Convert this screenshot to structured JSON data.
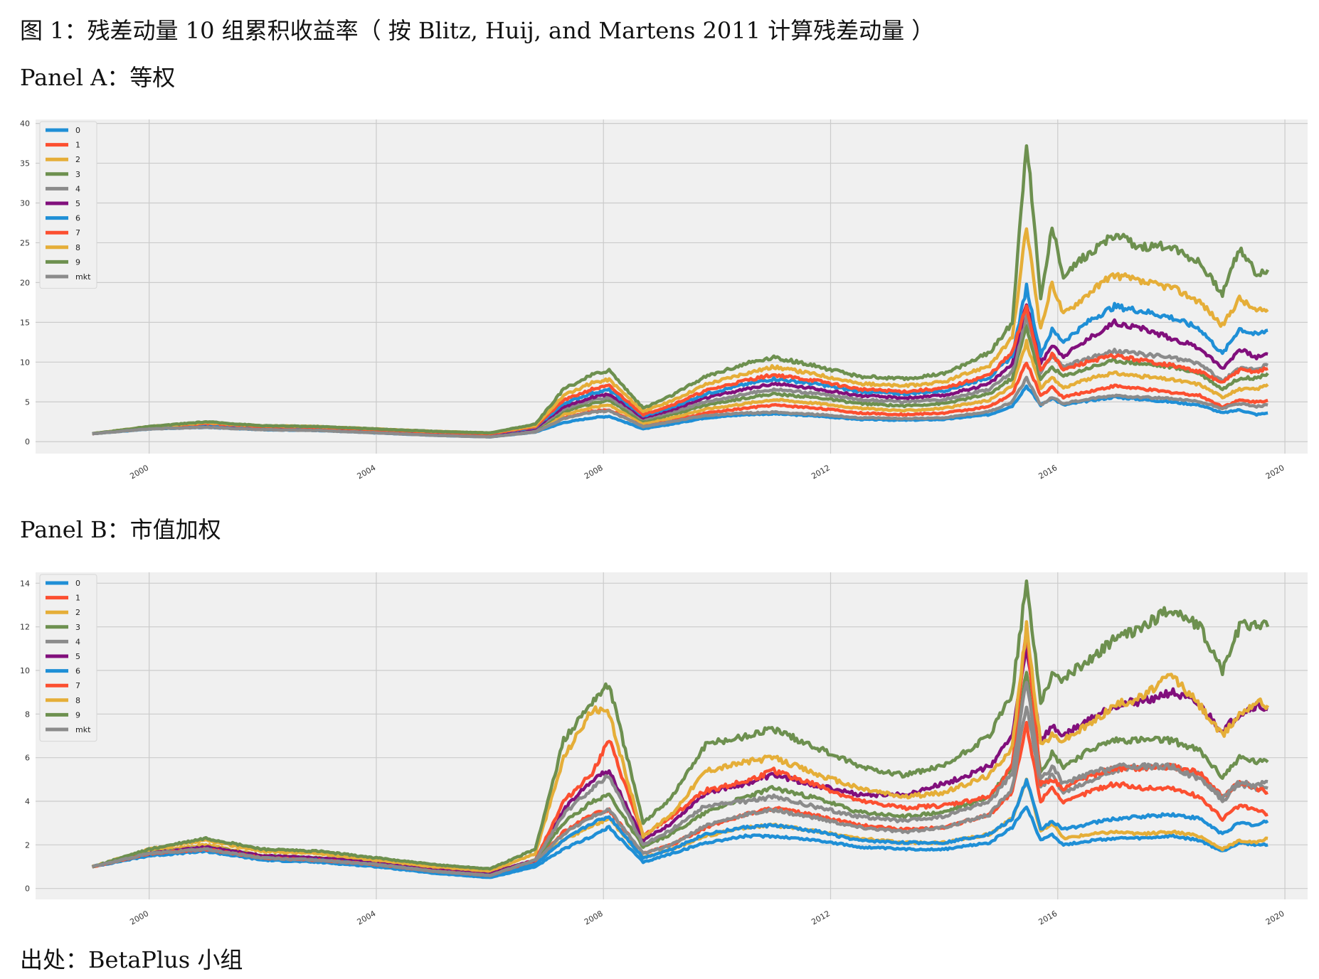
{
  "figure": {
    "title": "图 1：残差动量 10 组累积收益率（ 按 Blitz, Huij, and Martens 2011 计算残差动量 ）",
    "source": "出处：BetaPlus 小组"
  },
  "panels": {
    "a": {
      "title": "Panel A：等权"
    },
    "b": {
      "title": "Panel B：市值加权"
    }
  },
  "colors": {
    "0": "#1f8fd6",
    "1": "#fc4f30",
    "2": "#e5ae38",
    "3": "#6d904f",
    "4": "#8b8b8b",
    "5": "#810f7c",
    "6": "#1f8fd6",
    "7": "#fc4f30",
    "8": "#e5ae38",
    "9": "#6d904f",
    "mkt": "#8b8b8b",
    "plot_background": "#f0f0f0",
    "grid": "#cbcbcb"
  },
  "chart_data": [
    {
      "type": "line",
      "title": "",
      "xlabel": "",
      "ylabel": "",
      "xlim": [
        1998.0,
        2020.4
      ],
      "ylim": [
        -1.5,
        40.5
      ],
      "xticks": [
        "2000",
        "2004",
        "2008",
        "2012",
        "2016",
        "2020"
      ],
      "yticks": [
        "0",
        "5",
        "10",
        "15",
        "20",
        "25",
        "30",
        "35",
        "40"
      ],
      "grid": true,
      "legend_position": "top-left",
      "x": [
        1999.0,
        2000.0,
        2001.0,
        2002.0,
        2003.0,
        2004.0,
        2005.0,
        2006.0,
        2006.8,
        2007.3,
        2007.8,
        2008.1,
        2008.7,
        2009.2,
        2009.8,
        2010.5,
        2011.0,
        2011.8,
        2012.5,
        2013.3,
        2014.0,
        2014.8,
        2015.2,
        2015.45,
        2015.7,
        2015.9,
        2016.1,
        2016.6,
        2017.0,
        2017.5,
        2018.0,
        2018.5,
        2018.9,
        2019.2,
        2019.5,
        2019.7
      ],
      "series": [
        {
          "name": "0",
          "values": [
            1.0,
            1.6,
            1.8,
            1.5,
            1.4,
            1.1,
            0.8,
            0.6,
            1.2,
            2.4,
            3.0,
            3.2,
            1.6,
            2.2,
            3.0,
            3.4,
            3.5,
            3.2,
            2.8,
            2.7,
            2.8,
            3.4,
            4.5,
            7.0,
            4.6,
            5.5,
            4.6,
            5.2,
            5.6,
            5.3,
            5.0,
            4.6,
            3.6,
            4.0,
            3.4,
            3.6
          ]
        },
        {
          "name": "1",
          "values": [
            1.0,
            1.7,
            2.0,
            1.6,
            1.5,
            1.2,
            0.9,
            0.7,
            1.3,
            3.0,
            3.8,
            4.0,
            2.0,
            2.6,
            3.6,
            4.2,
            4.6,
            4.2,
            3.6,
            3.4,
            3.6,
            4.4,
            6.0,
            10.0,
            5.8,
            6.8,
            5.6,
            6.4,
            7.0,
            6.6,
            6.2,
            5.8,
            4.4,
            5.2,
            5.0,
            5.2
          ]
        },
        {
          "name": "2",
          "values": [
            1.0,
            1.7,
            2.0,
            1.7,
            1.6,
            1.3,
            1.0,
            0.8,
            1.4,
            3.4,
            4.3,
            4.6,
            2.3,
            3.0,
            4.1,
            4.8,
            5.3,
            4.8,
            4.2,
            3.9,
            4.2,
            5.2,
            7.0,
            12.5,
            6.8,
            8.0,
            6.8,
            8.0,
            8.6,
            8.2,
            7.8,
            7.2,
            5.6,
            6.6,
            6.6,
            7.2
          ]
        },
        {
          "name": "3",
          "values": [
            1.0,
            1.7,
            2.1,
            1.7,
            1.6,
            1.3,
            1.0,
            0.8,
            1.5,
            3.8,
            4.8,
            5.2,
            2.6,
            3.4,
            4.6,
            5.5,
            6.0,
            5.5,
            4.8,
            4.5,
            4.8,
            6.0,
            8.0,
            14.5,
            7.8,
            9.4,
            8.2,
            9.4,
            10.2,
            9.8,
            9.4,
            8.6,
            6.6,
            8.0,
            8.0,
            8.6
          ]
        },
        {
          "name": "4",
          "values": [
            1.0,
            1.7,
            2.1,
            1.8,
            1.7,
            1.4,
            1.1,
            0.9,
            1.6,
            4.1,
            5.2,
            5.6,
            2.8,
            3.7,
            5.0,
            6.0,
            6.6,
            6.0,
            5.3,
            5.0,
            5.3,
            6.6,
            8.8,
            16.0,
            8.8,
            10.8,
            9.4,
            10.6,
            11.4,
            11.0,
            10.6,
            9.8,
            7.6,
            9.2,
            9.2,
            9.6
          ]
        },
        {
          "name": "5",
          "values": [
            1.0,
            1.8,
            2.2,
            1.8,
            1.7,
            1.4,
            1.1,
            0.9,
            1.7,
            4.4,
            5.6,
            6.0,
            3.0,
            4.0,
            5.5,
            6.6,
            7.3,
            6.6,
            5.8,
            5.5,
            5.8,
            7.3,
            9.8,
            17.5,
            9.8,
            12.2,
            10.8,
            13.2,
            15.0,
            14.2,
            13.0,
            11.8,
            9.2,
            11.6,
            10.6,
            11.0
          ]
        },
        {
          "name": "6",
          "values": [
            1.0,
            1.8,
            2.2,
            1.9,
            1.8,
            1.5,
            1.2,
            1.0,
            1.8,
            4.8,
            6.1,
            6.5,
            3.2,
            4.3,
            6.0,
            7.2,
            7.9,
            7.2,
            6.3,
            6.0,
            6.4,
            8.1,
            10.8,
            19.5,
            11.0,
            14.0,
            12.6,
            15.4,
            17.0,
            16.4,
            15.6,
            14.2,
            11.0,
            14.2,
            13.4,
            14.0
          ]
        },
        {
          "name": "7",
          "values": [
            1.0,
            1.8,
            2.3,
            1.9,
            1.8,
            1.5,
            1.2,
            1.0,
            1.9,
            5.2,
            6.6,
            7.0,
            3.4,
            4.6,
            6.4,
            7.7,
            8.4,
            7.6,
            6.6,
            6.3,
            6.7,
            8.4,
            11.2,
            17.0,
            9.0,
            11.0,
            9.0,
            10.2,
            10.8,
            10.2,
            9.6,
            8.8,
            7.4,
            9.0,
            8.8,
            9.2
          ]
        },
        {
          "name": "8",
          "values": [
            1.0,
            1.9,
            2.4,
            2.0,
            1.9,
            1.6,
            1.3,
            1.1,
            2.0,
            5.8,
            7.4,
            7.8,
            3.8,
            5.1,
            7.2,
            8.6,
            9.4,
            8.4,
            7.3,
            7.0,
            7.5,
            9.6,
            13.0,
            27.0,
            14.0,
            20.0,
            16.0,
            19.0,
            21.0,
            20.0,
            19.4,
            17.6,
            14.6,
            18.0,
            16.4,
            16.6
          ]
        },
        {
          "name": "9",
          "values": [
            1.0,
            1.9,
            2.5,
            2.0,
            1.9,
            1.6,
            1.3,
            1.1,
            2.2,
            6.6,
            8.4,
            9.0,
            4.2,
            5.8,
            8.2,
            9.8,
            10.6,
            9.4,
            8.2,
            7.9,
            8.5,
            11.2,
            15.0,
            38.0,
            18.0,
            27.0,
            21.0,
            24.0,
            26.0,
            24.4,
            24.6,
            22.4,
            18.6,
            24.4,
            21.0,
            21.6
          ]
        },
        {
          "name": "mkt",
          "values": [
            1.0,
            1.6,
            1.8,
            1.5,
            1.4,
            1.1,
            0.8,
            0.6,
            1.2,
            2.9,
            3.7,
            3.9,
            1.9,
            2.5,
            3.3,
            3.6,
            3.7,
            3.4,
            3.0,
            2.9,
            3.0,
            3.8,
            5.0,
            8.0,
            4.6,
            5.6,
            4.8,
            5.4,
            5.8,
            5.6,
            5.4,
            5.0,
            4.2,
            4.8,
            4.4,
            4.6
          ]
        }
      ]
    },
    {
      "type": "line",
      "title": "",
      "xlabel": "",
      "ylabel": "",
      "xlim": [
        1998.0,
        2020.4
      ],
      "ylim": [
        -0.5,
        14.5
      ],
      "xticks": [
        "2000",
        "2004",
        "2008",
        "2012",
        "2016",
        "2020"
      ],
      "yticks": [
        "0",
        "2",
        "4",
        "6",
        "8",
        "10",
        "12",
        "14"
      ],
      "grid": true,
      "legend_position": "top-left",
      "x": [
        1999.0,
        2000.0,
        2001.0,
        2002.0,
        2003.0,
        2004.0,
        2005.0,
        2006.0,
        2006.8,
        2007.3,
        2007.8,
        2008.1,
        2008.7,
        2009.2,
        2009.8,
        2010.5,
        2011.0,
        2011.8,
        2012.5,
        2013.3,
        2014.0,
        2014.8,
        2015.2,
        2015.45,
        2015.7,
        2015.9,
        2016.1,
        2016.6,
        2017.0,
        2017.5,
        2018.0,
        2018.5,
        2018.9,
        2019.2,
        2019.5,
        2019.7
      ],
      "series": [
        {
          "name": "0",
          "values": [
            1.0,
            1.5,
            1.7,
            1.3,
            1.2,
            1.0,
            0.7,
            0.5,
            1.0,
            1.8,
            2.4,
            2.8,
            1.2,
            1.6,
            2.1,
            2.4,
            2.4,
            2.2,
            1.9,
            1.8,
            1.8,
            2.1,
            2.8,
            3.8,
            2.2,
            2.5,
            2.0,
            2.2,
            2.3,
            2.3,
            2.4,
            2.2,
            1.7,
            2.1,
            2.0,
            2.0
          ]
        },
        {
          "name": "1",
          "values": [
            1.0,
            1.6,
            1.8,
            1.4,
            1.3,
            1.1,
            0.8,
            0.6,
            1.2,
            2.6,
            3.4,
            3.6,
            1.6,
            2.0,
            2.8,
            3.4,
            3.7,
            3.3,
            2.9,
            2.7,
            2.8,
            3.4,
            4.4,
            7.5,
            4.0,
            4.7,
            3.9,
            4.5,
            4.8,
            4.6,
            4.6,
            4.2,
            3.2,
            3.8,
            3.6,
            3.4
          ]
        },
        {
          "name": "2",
          "values": [
            1.0,
            1.7,
            2.0,
            1.5,
            1.4,
            1.2,
            0.9,
            0.7,
            1.3,
            2.2,
            2.9,
            3.2,
            1.4,
            1.8,
            2.4,
            2.8,
            2.9,
            2.6,
            2.3,
            2.1,
            2.1,
            2.5,
            3.2,
            5.0,
            2.6,
            3.0,
            2.3,
            2.5,
            2.6,
            2.5,
            2.6,
            2.4,
            1.8,
            2.2,
            2.1,
            2.3
          ]
        },
        {
          "name": "3",
          "values": [
            1.0,
            1.6,
            1.9,
            1.5,
            1.4,
            1.2,
            0.9,
            0.7,
            1.3,
            3.0,
            4.0,
            4.3,
            1.9,
            2.5,
            3.5,
            4.2,
            4.6,
            4.1,
            3.5,
            3.3,
            3.5,
            4.2,
            5.6,
            10.0,
            5.4,
            6.2,
            5.6,
            6.4,
            6.8,
            6.8,
            6.8,
            6.3,
            5.1,
            6.0,
            5.8,
            5.8
          ]
        },
        {
          "name": "4",
          "values": [
            1.0,
            1.6,
            1.9,
            1.4,
            1.3,
            1.1,
            0.8,
            0.6,
            1.2,
            2.5,
            3.3,
            3.6,
            1.6,
            2.0,
            2.9,
            3.4,
            3.6,
            3.2,
            2.8,
            2.6,
            2.8,
            3.4,
            4.6,
            8.5,
            4.6,
            5.2,
            4.4,
            5.0,
            5.4,
            5.6,
            5.6,
            5.2,
            4.0,
            4.8,
            4.6,
            4.6
          ]
        },
        {
          "name": "5",
          "values": [
            1.0,
            1.6,
            1.9,
            1.5,
            1.4,
            1.2,
            0.9,
            0.7,
            1.3,
            3.6,
            5.0,
            5.4,
            2.2,
            3.0,
            4.4,
            4.8,
            5.2,
            4.7,
            4.3,
            4.3,
            4.8,
            5.6,
            7.0,
            11.0,
            6.8,
            7.4,
            7.0,
            7.8,
            8.4,
            8.6,
            9.0,
            8.4,
            7.2,
            8.0,
            8.4,
            8.2
          ]
        },
        {
          "name": "6",
          "values": [
            1.0,
            1.6,
            1.8,
            1.4,
            1.3,
            1.1,
            0.8,
            0.6,
            1.1,
            2.2,
            3.0,
            3.3,
            1.4,
            1.8,
            2.5,
            2.8,
            2.9,
            2.6,
            2.2,
            2.1,
            2.1,
            2.5,
            3.2,
            5.0,
            2.7,
            3.1,
            2.7,
            3.0,
            3.2,
            3.3,
            3.4,
            3.2,
            2.5,
            3.0,
            2.9,
            3.1
          ]
        },
        {
          "name": "7",
          "values": [
            1.0,
            1.6,
            1.8,
            1.4,
            1.3,
            1.1,
            0.8,
            0.6,
            1.3,
            4.0,
            5.3,
            6.8,
            2.4,
            3.3,
            4.5,
            4.9,
            5.4,
            4.7,
            4.0,
            3.7,
            3.8,
            4.2,
            5.6,
            12.0,
            4.8,
            5.0,
            4.6,
            5.2,
            5.5,
            5.5,
            5.6,
            5.3,
            4.2,
            4.9,
            4.6,
            4.4
          ]
        },
        {
          "name": "8",
          "values": [
            1.0,
            1.8,
            2.2,
            1.7,
            1.6,
            1.3,
            1.0,
            0.8,
            1.6,
            6.0,
            8.2,
            8.0,
            2.4,
            3.4,
            5.4,
            5.8,
            6.0,
            5.2,
            4.6,
            4.2,
            4.4,
            5.2,
            6.5,
            12.0,
            6.6,
            7.0,
            6.8,
            7.6,
            8.4,
            8.8,
            9.8,
            8.4,
            7.0,
            8.0,
            8.6,
            8.4
          ]
        },
        {
          "name": "9",
          "values": [
            1.0,
            1.8,
            2.3,
            1.8,
            1.7,
            1.4,
            1.1,
            0.9,
            1.8,
            6.8,
            8.6,
            9.4,
            3.0,
            4.2,
            6.6,
            7.0,
            7.3,
            6.4,
            5.6,
            5.2,
            5.6,
            7.0,
            9.0,
            14.0,
            8.6,
            9.8,
            9.6,
            10.6,
            11.4,
            12.0,
            12.8,
            12.0,
            10.0,
            12.0,
            12.2,
            12.0
          ]
        },
        {
          "name": "mkt",
          "values": [
            1.0,
            1.6,
            1.8,
            1.4,
            1.3,
            1.1,
            0.8,
            0.6,
            1.3,
            3.4,
            4.6,
            5.2,
            2.0,
            2.7,
            3.8,
            4.0,
            4.2,
            3.7,
            3.3,
            3.1,
            3.3,
            4.0,
            5.3,
            9.5,
            5.0,
            5.6,
            4.8,
            5.3,
            5.6,
            5.6,
            5.6,
            5.0,
            4.2,
            4.9,
            4.7,
            4.9
          ]
        }
      ]
    }
  ]
}
